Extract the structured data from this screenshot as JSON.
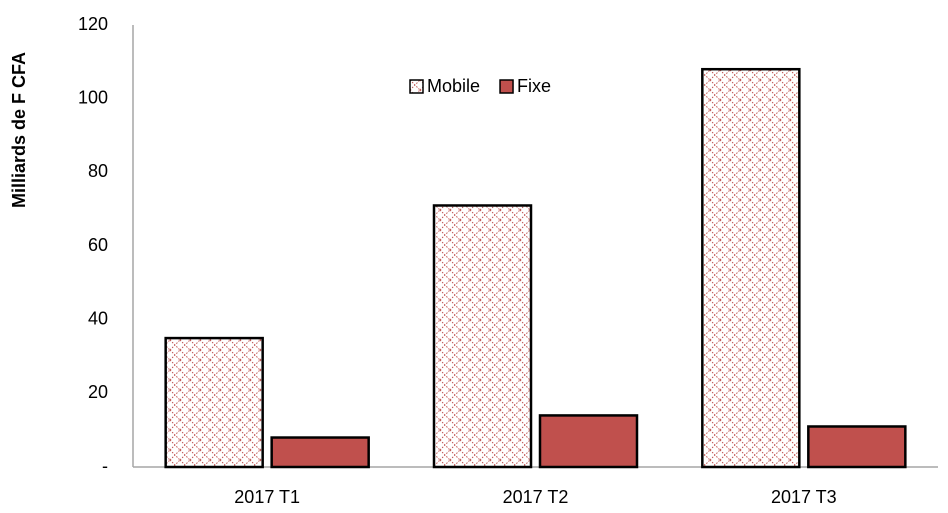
{
  "chart_data": {
    "type": "bar",
    "y_label": "Milliards de F CFA",
    "categories": [
      "2017 T1",
      "2017 T2",
      "2017 T3"
    ],
    "series": [
      {
        "name": "Mobile",
        "color": "#c0504d",
        "pattern": "crosshatch",
        "values": [
          35,
          71,
          108
        ]
      },
      {
        "name": "Fixe",
        "color": "#c0504d",
        "values": [
          8,
          14,
          11
        ]
      }
    ],
    "ylim": [
      0,
      120
    ],
    "yticks": [
      {
        "value": 0,
        "label": "-"
      },
      20,
      40,
      60,
      80,
      100,
      120
    ],
    "grid": false,
    "legend": "top"
  }
}
